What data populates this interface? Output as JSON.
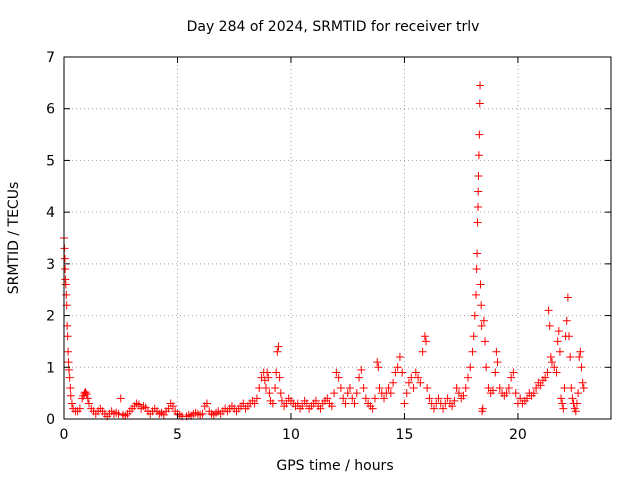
{
  "chart_data": {
    "type": "scatter",
    "title": "Day 284 of 2024, SRMTID for receiver trlv",
    "xlabel": "GPS time / hours",
    "ylabel": "SRMTID / TECUs",
    "xlim": [
      0,
      24.1
    ],
    "ylim": [
      0,
      7
    ],
    "xticks": [
      0,
      5,
      10,
      15,
      20
    ],
    "yticks": [
      0,
      1,
      2,
      3,
      4,
      5,
      6,
      7
    ],
    "grid": true,
    "marker": "+",
    "color": "#ff0000",
    "series": [
      {
        "name": "",
        "points": [
          [
            0.0,
            3.5
          ],
          [
            0.02,
            3.3
          ],
          [
            0.04,
            3.1
          ],
          [
            0.05,
            2.9
          ],
          [
            0.06,
            2.7
          ],
          [
            0.08,
            2.6
          ],
          [
            0.1,
            2.4
          ],
          [
            0.12,
            2.2
          ],
          [
            0.14,
            1.8
          ],
          [
            0.16,
            1.6
          ],
          [
            0.18,
            1.3
          ],
          [
            0.2,
            1.1
          ],
          [
            0.22,
            0.95
          ],
          [
            0.25,
            0.8
          ],
          [
            0.28,
            0.6
          ],
          [
            0.3,
            0.45
          ],
          [
            0.35,
            0.3
          ],
          [
            0.4,
            0.2
          ],
          [
            0.5,
            0.15
          ],
          [
            0.6,
            0.15
          ],
          [
            0.7,
            0.2
          ],
          [
            0.8,
            0.4
          ],
          [
            0.85,
            0.45
          ],
          [
            0.9,
            0.5
          ],
          [
            0.95,
            0.52
          ],
          [
            1.0,
            0.48
          ],
          [
            1.05,
            0.4
          ],
          [
            1.1,
            0.3
          ],
          [
            1.2,
            0.2
          ],
          [
            1.3,
            0.15
          ],
          [
            1.4,
            0.1
          ],
          [
            1.5,
            0.15
          ],
          [
            1.6,
            0.2
          ],
          [
            1.7,
            0.15
          ],
          [
            1.8,
            0.1
          ],
          [
            1.9,
            0.05
          ],
          [
            2.0,
            0.1
          ],
          [
            2.1,
            0.15
          ],
          [
            2.2,
            0.1
          ],
          [
            2.3,
            0.12
          ],
          [
            2.4,
            0.1
          ],
          [
            2.5,
            0.4
          ],
          [
            2.6,
            0.08
          ],
          [
            2.7,
            0.06
          ],
          [
            2.8,
            0.1
          ],
          [
            2.9,
            0.15
          ],
          [
            3.0,
            0.2
          ],
          [
            3.1,
            0.25
          ],
          [
            3.2,
            0.3
          ],
          [
            3.3,
            0.28
          ],
          [
            3.4,
            0.2
          ],
          [
            3.5,
            0.25
          ],
          [
            3.6,
            0.22
          ],
          [
            3.7,
            0.15
          ],
          [
            3.8,
            0.1
          ],
          [
            3.9,
            0.15
          ],
          [
            4.0,
            0.2
          ],
          [
            4.1,
            0.15
          ],
          [
            4.2,
            0.1
          ],
          [
            4.3,
            0.12
          ],
          [
            4.4,
            0.08
          ],
          [
            4.5,
            0.15
          ],
          [
            4.6,
            0.2
          ],
          [
            4.7,
            0.3
          ],
          [
            4.8,
            0.25
          ],
          [
            4.9,
            0.15
          ],
          [
            5.0,
            0.1
          ],
          [
            5.1,
            0.08
          ],
          [
            5.2,
            0.05
          ],
          [
            5.4,
            0.05
          ],
          [
            5.5,
            0.08
          ],
          [
            5.6,
            0.06
          ],
          [
            5.7,
            0.1
          ],
          [
            5.8,
            0.12
          ],
          [
            5.9,
            0.1
          ],
          [
            6.0,
            0.08
          ],
          [
            6.1,
            0.1
          ],
          [
            6.2,
            0.25
          ],
          [
            6.3,
            0.3
          ],
          [
            6.4,
            0.15
          ],
          [
            6.5,
            0.1
          ],
          [
            6.6,
            0.08
          ],
          [
            6.7,
            0.12
          ],
          [
            6.8,
            0.15
          ],
          [
            6.9,
            0.1
          ],
          [
            7.0,
            0.15
          ],
          [
            7.1,
            0.2
          ],
          [
            7.2,
            0.15
          ],
          [
            7.3,
            0.2
          ],
          [
            7.4,
            0.25
          ],
          [
            7.5,
            0.2
          ],
          [
            7.6,
            0.15
          ],
          [
            7.7,
            0.2
          ],
          [
            7.8,
            0.25
          ],
          [
            7.9,
            0.3
          ],
          [
            8.0,
            0.2
          ],
          [
            8.1,
            0.25
          ],
          [
            8.2,
            0.3
          ],
          [
            8.3,
            0.35
          ],
          [
            8.4,
            0.3
          ],
          [
            8.5,
            0.4
          ],
          [
            8.6,
            0.6
          ],
          [
            8.7,
            0.8
          ],
          [
            8.8,
            0.9
          ],
          [
            8.85,
            0.75
          ],
          [
            8.9,
            0.6
          ],
          [
            8.95,
            0.9
          ],
          [
            9.0,
            0.8
          ],
          [
            9.05,
            0.5
          ],
          [
            9.1,
            0.35
          ],
          [
            9.2,
            0.3
          ],
          [
            9.3,
            0.6
          ],
          [
            9.35,
            0.9
          ],
          [
            9.4,
            1.3
          ],
          [
            9.45,
            1.4
          ],
          [
            9.5,
            0.8
          ],
          [
            9.55,
            0.5
          ],
          [
            9.6,
            0.35
          ],
          [
            9.7,
            0.25
          ],
          [
            9.8,
            0.3
          ],
          [
            9.9,
            0.4
          ],
          [
            10.0,
            0.35
          ],
          [
            10.1,
            0.3
          ],
          [
            10.2,
            0.25
          ],
          [
            10.3,
            0.3
          ],
          [
            10.4,
            0.2
          ],
          [
            10.5,
            0.25
          ],
          [
            10.6,
            0.35
          ],
          [
            10.7,
            0.3
          ],
          [
            10.8,
            0.2
          ],
          [
            10.9,
            0.25
          ],
          [
            11.0,
            0.3
          ],
          [
            11.1,
            0.35
          ],
          [
            11.2,
            0.25
          ],
          [
            11.3,
            0.2
          ],
          [
            11.4,
            0.3
          ],
          [
            11.5,
            0.35
          ],
          [
            11.6,
            0.4
          ],
          [
            11.7,
            0.3
          ],
          [
            11.8,
            0.25
          ],
          [
            11.9,
            0.5
          ],
          [
            12.0,
            0.9
          ],
          [
            12.1,
            0.8
          ],
          [
            12.2,
            0.6
          ],
          [
            12.3,
            0.4
          ],
          [
            12.4,
            0.3
          ],
          [
            12.5,
            0.5
          ],
          [
            12.6,
            0.6
          ],
          [
            12.7,
            0.4
          ],
          [
            12.8,
            0.3
          ],
          [
            12.9,
            0.5
          ],
          [
            13.0,
            0.8
          ],
          [
            13.1,
            0.95
          ],
          [
            13.2,
            0.6
          ],
          [
            13.3,
            0.4
          ],
          [
            13.4,
            0.3
          ],
          [
            13.5,
            0.25
          ],
          [
            13.6,
            0.2
          ],
          [
            13.7,
            0.4
          ],
          [
            13.8,
            1.1
          ],
          [
            13.85,
            1.0
          ],
          [
            13.9,
            0.6
          ],
          [
            14.0,
            0.5
          ],
          [
            14.1,
            0.4
          ],
          [
            14.2,
            0.5
          ],
          [
            14.3,
            0.6
          ],
          [
            14.4,
            0.5
          ],
          [
            14.5,
            0.7
          ],
          [
            14.6,
            0.9
          ],
          [
            14.7,
            1.0
          ],
          [
            14.8,
            1.2
          ],
          [
            14.9,
            0.9
          ],
          [
            15.0,
            0.3
          ],
          [
            15.1,
            0.5
          ],
          [
            15.2,
            0.7
          ],
          [
            15.3,
            0.8
          ],
          [
            15.4,
            0.6
          ],
          [
            15.5,
            0.9
          ],
          [
            15.6,
            0.8
          ],
          [
            15.7,
            0.7
          ],
          [
            15.8,
            1.3
          ],
          [
            15.9,
            1.6
          ],
          [
            15.95,
            1.5
          ],
          [
            16.0,
            0.6
          ],
          [
            16.1,
            0.4
          ],
          [
            16.2,
            0.3
          ],
          [
            16.3,
            0.2
          ],
          [
            16.4,
            0.3
          ],
          [
            16.5,
            0.4
          ],
          [
            16.6,
            0.3
          ],
          [
            16.7,
            0.2
          ],
          [
            16.8,
            0.3
          ],
          [
            16.9,
            0.4
          ],
          [
            17.0,
            0.3
          ],
          [
            17.1,
            0.25
          ],
          [
            17.2,
            0.35
          ],
          [
            17.3,
            0.6
          ],
          [
            17.4,
            0.5
          ],
          [
            17.5,
            0.4
          ],
          [
            17.6,
            0.45
          ],
          [
            17.7,
            0.6
          ],
          [
            17.8,
            0.8
          ],
          [
            17.9,
            1.0
          ],
          [
            18.0,
            1.3
          ],
          [
            18.05,
            1.6
          ],
          [
            18.1,
            2.0
          ],
          [
            18.15,
            2.4
          ],
          [
            18.18,
            2.9
          ],
          [
            18.2,
            3.2
          ],
          [
            18.22,
            3.8
          ],
          [
            18.24,
            4.1
          ],
          [
            18.25,
            4.4
          ],
          [
            18.26,
            4.7
          ],
          [
            18.28,
            5.1
          ],
          [
            18.3,
            5.5
          ],
          [
            18.32,
            6.1
          ],
          [
            18.33,
            6.45
          ],
          [
            18.35,
            2.6
          ],
          [
            18.38,
            2.2
          ],
          [
            18.4,
            1.8
          ],
          [
            18.42,
            0.15
          ],
          [
            18.45,
            0.2
          ],
          [
            18.5,
            1.9
          ],
          [
            18.55,
            1.5
          ],
          [
            18.6,
            1.0
          ],
          [
            18.7,
            0.6
          ],
          [
            18.8,
            0.5
          ],
          [
            18.9,
            0.55
          ],
          [
            19.0,
            0.9
          ],
          [
            19.05,
            1.3
          ],
          [
            19.1,
            1.1
          ],
          [
            19.2,
            0.6
          ],
          [
            19.3,
            0.5
          ],
          [
            19.4,
            0.45
          ],
          [
            19.5,
            0.5
          ],
          [
            19.6,
            0.6
          ],
          [
            19.7,
            0.8
          ],
          [
            19.8,
            0.9
          ],
          [
            19.9,
            0.5
          ],
          [
            20.0,
            0.3
          ],
          [
            20.1,
            0.4
          ],
          [
            20.2,
            0.3
          ],
          [
            20.3,
            0.35
          ],
          [
            20.4,
            0.4
          ],
          [
            20.5,
            0.5
          ],
          [
            20.6,
            0.45
          ],
          [
            20.7,
            0.5
          ],
          [
            20.8,
            0.6
          ],
          [
            20.9,
            0.7
          ],
          [
            21.0,
            0.65
          ],
          [
            21.1,
            0.75
          ],
          [
            21.2,
            0.8
          ],
          [
            21.3,
            0.9
          ],
          [
            21.35,
            2.1
          ],
          [
            21.4,
            1.8
          ],
          [
            21.45,
            1.2
          ],
          [
            21.5,
            1.1
          ],
          [
            21.6,
            1.0
          ],
          [
            21.7,
            0.9
          ],
          [
            21.75,
            1.5
          ],
          [
            21.8,
            1.7
          ],
          [
            21.85,
            1.3
          ],
          [
            21.9,
            0.4
          ],
          [
            21.95,
            0.3
          ],
          [
            22.0,
            0.2
          ],
          [
            22.05,
            0.6
          ],
          [
            22.1,
            1.6
          ],
          [
            22.15,
            1.9
          ],
          [
            22.2,
            2.35
          ],
          [
            22.25,
            1.6
          ],
          [
            22.3,
            1.2
          ],
          [
            22.35,
            0.6
          ],
          [
            22.4,
            0.4
          ],
          [
            22.45,
            0.3
          ],
          [
            22.5,
            0.2
          ],
          [
            22.55,
            0.15
          ],
          [
            22.6,
            0.3
          ],
          [
            22.65,
            0.5
          ],
          [
            22.7,
            1.2
          ],
          [
            22.75,
            1.3
          ],
          [
            22.8,
            1.0
          ],
          [
            22.85,
            0.7
          ],
          [
            22.9,
            0.6
          ]
        ]
      }
    ]
  }
}
